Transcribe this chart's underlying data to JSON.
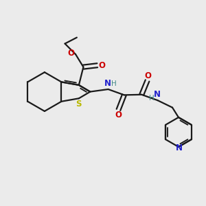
{
  "background_color": "#ebebeb",
  "bond_color": "#1a1a1a",
  "sulfur_color": "#b8b800",
  "nitrogen_color": "#2020cc",
  "oxygen_color": "#cc0000",
  "h_color": "#408888",
  "figsize": [
    3.0,
    3.0
  ],
  "dpi": 100,
  "xlim": [
    0,
    10
  ],
  "ylim": [
    0,
    10
  ]
}
